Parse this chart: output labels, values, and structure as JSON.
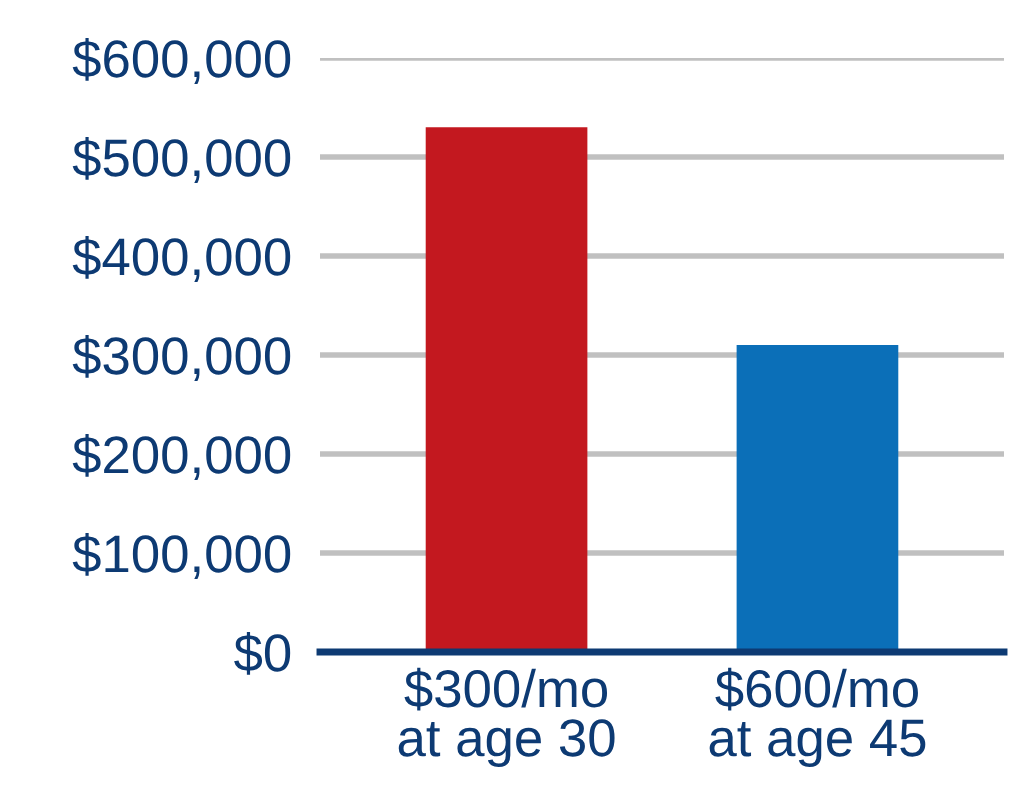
{
  "chart_data": {
    "type": "bar",
    "categories": [
      "$300/mo\nat age 30",
      "$600/mo\nat age 45"
    ],
    "values": [
      530000,
      310000
    ],
    "colors": [
      "#c3181f",
      "#0b6fb8"
    ],
    "ylim": [
      0,
      600000
    ],
    "yticks": [
      {
        "value": 0,
        "label": "$0"
      },
      {
        "value": 100000,
        "label": "$100,000"
      },
      {
        "value": 200000,
        "label": "$200,000"
      },
      {
        "value": 300000,
        "label": "$300,000"
      },
      {
        "value": 400000,
        "label": "$400,000"
      },
      {
        "value": 500000,
        "label": "$500,000"
      },
      {
        "value": 600000,
        "label": "$600,000"
      }
    ],
    "grid": "y"
  }
}
